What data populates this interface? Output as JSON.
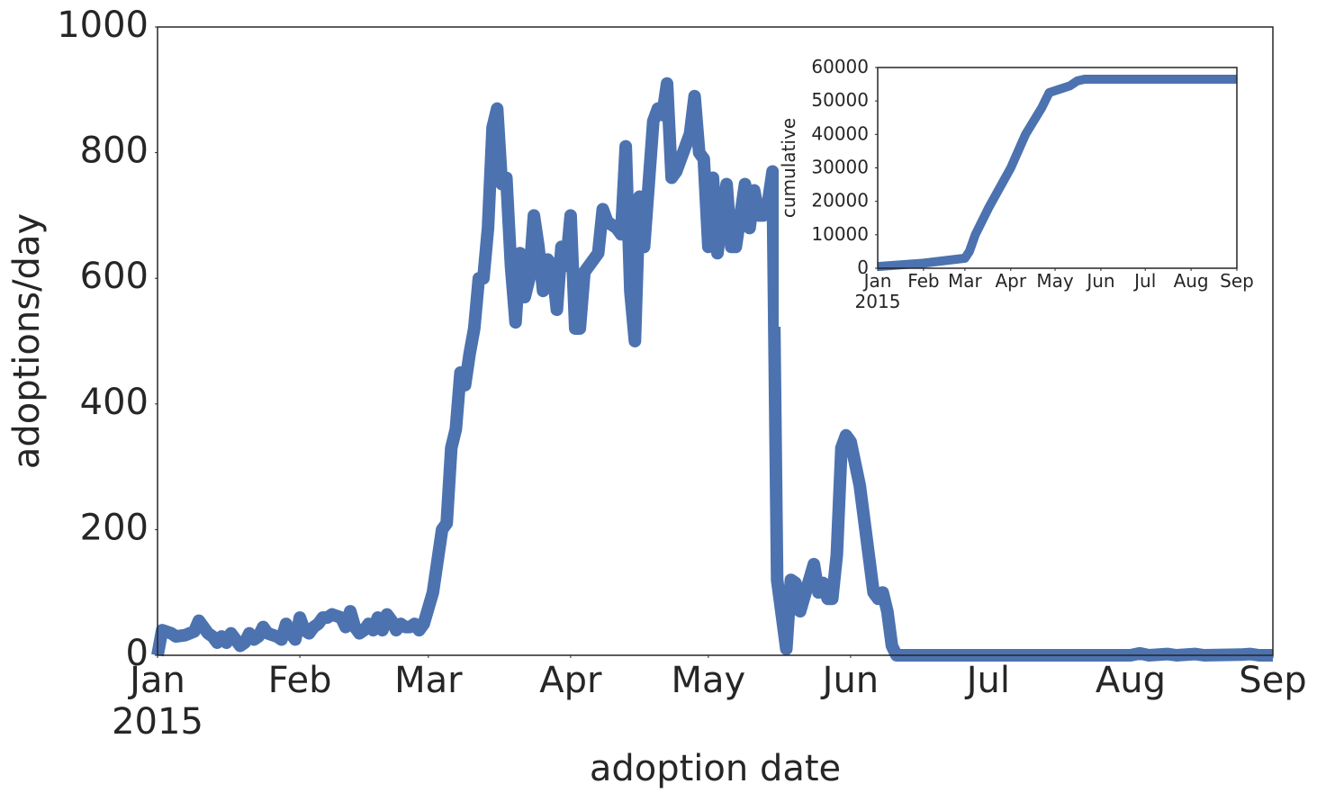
{
  "chart_data": [
    {
      "type": "line",
      "xlabel": "adoption date",
      "ylabel": "adoptions/day",
      "xlim": [
        0,
        243
      ],
      "ylim": [
        0,
        1000
      ],
      "xticks": [
        {
          "value": 0,
          "label": "Jan\n2015"
        },
        {
          "value": 31,
          "label": "Feb"
        },
        {
          "value": 59,
          "label": "Mar"
        },
        {
          "value": 90,
          "label": "Apr"
        },
        {
          "value": 120,
          "label": "May"
        },
        {
          "value": 151,
          "label": "Jun"
        },
        {
          "value": 181,
          "label": "Jul"
        },
        {
          "value": 212,
          "label": "Aug"
        },
        {
          "value": 243,
          "label": "Sep"
        }
      ],
      "yticks": [
        0,
        200,
        400,
        600,
        800,
        1000
      ],
      "x": [
        0,
        1,
        3,
        4,
        6,
        8,
        9,
        10,
        11,
        12,
        13,
        14,
        15,
        16,
        17,
        18,
        19,
        20,
        21,
        22,
        23,
        24,
        26,
        27,
        28,
        29,
        30,
        31,
        32,
        33,
        34,
        35,
        36,
        37,
        38,
        40,
        41,
        42,
        43,
        44,
        45,
        46,
        47,
        48,
        49,
        50,
        51,
        52,
        53,
        54,
        55,
        56,
        57,
        58,
        60,
        61,
        62,
        63,
        64,
        65,
        66,
        67,
        68,
        69,
        70,
        71,
        72,
        73,
        74,
        75,
        76,
        77,
        78,
        79,
        80,
        81,
        82,
        83,
        84,
        85,
        86,
        87,
        88,
        89,
        90,
        91,
        92,
        93,
        96,
        97,
        98,
        100,
        101,
        102,
        103,
        104,
        105,
        106,
        107,
        108,
        109,
        110,
        111,
        112,
        113,
        116,
        117,
        118,
        119,
        120,
        121,
        122,
        123,
        124,
        125,
        126,
        127,
        128,
        129,
        130,
        131,
        132,
        133,
        134,
        135,
        137,
        138,
        139,
        140,
        142,
        143,
        144,
        145,
        146,
        147,
        148,
        149,
        150,
        151,
        153,
        156,
        157,
        158,
        159,
        160,
        161,
        212,
        214,
        216,
        220,
        222,
        226,
        228,
        236,
        238,
        240,
        243
      ],
      "series": [
        {
          "color": "#4c72b0",
          "values": [
            0,
            40,
            35,
            30,
            32,
            38,
            55,
            45,
            35,
            30,
            20,
            30,
            20,
            35,
            25,
            15,
            20,
            35,
            25,
            30,
            45,
            35,
            30,
            25,
            50,
            35,
            25,
            60,
            40,
            35,
            45,
            50,
            60,
            60,
            65,
            60,
            45,
            70,
            45,
            35,
            40,
            50,
            40,
            60,
            40,
            65,
            55,
            40,
            50,
            45,
            45,
            50,
            40,
            50,
            100,
            150,
            200,
            210,
            330,
            360,
            450,
            430,
            480,
            520,
            600,
            600,
            680,
            840,
            870,
            750,
            760,
            620,
            530,
            640,
            570,
            600,
            700,
            650,
            580,
            630,
            620,
            550,
            650,
            620,
            700,
            520,
            520,
            610,
            640,
            710,
            690,
            680,
            670,
            810,
            580,
            500,
            730,
            650,
            750,
            850,
            870,
            860,
            910,
            760,
            770,
            830,
            890,
            800,
            790,
            650,
            760,
            640,
            700,
            750,
            650,
            650,
            700,
            750,
            680,
            740,
            700,
            700,
            720,
            770,
            120,
            10,
            120,
            115,
            70,
            120,
            145,
            100,
            115,
            90,
            90,
            160,
            330,
            350,
            340,
            270,
            100,
            90,
            100,
            70,
            15,
            0,
            0,
            3,
            0,
            2,
            0,
            2,
            0,
            1,
            2,
            0,
            0
          ]
        }
      ]
    },
    {
      "type": "line",
      "ylabel": "cumulative",
      "xlim": [
        0,
        243
      ],
      "ylim": [
        0,
        60000
      ],
      "xticks": [
        {
          "value": 0,
          "label": "Jan\n2015"
        },
        {
          "value": 31,
          "label": "Feb"
        },
        {
          "value": 59,
          "label": "Mar"
        },
        {
          "value": 90,
          "label": "Apr"
        },
        {
          "value": 120,
          "label": "May"
        },
        {
          "value": 151,
          "label": "Jun"
        },
        {
          "value": 181,
          "label": "Jul"
        },
        {
          "value": 212,
          "label": "Aug"
        },
        {
          "value": 243,
          "label": "Sep"
        }
      ],
      "yticks": [
        0,
        10000,
        20000,
        30000,
        40000,
        50000,
        60000
      ],
      "x": [
        0,
        31,
        59,
        62,
        66,
        75,
        90,
        100,
        111,
        116,
        130,
        135,
        140,
        243
      ],
      "series": [
        {
          "color": "#4c72b0",
          "values": [
            500,
            1500,
            3000,
            5000,
            10000,
            18000,
            30000,
            40000,
            48000,
            52500,
            54500,
            56000,
            56500,
            56500
          ]
        }
      ]
    }
  ]
}
